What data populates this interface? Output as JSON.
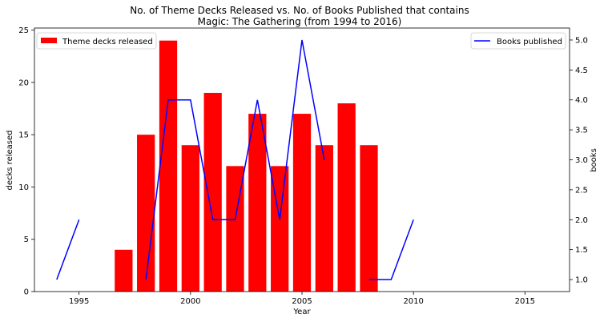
{
  "chart_data": {
    "title_line1": "No. of Theme Decks Released vs. No. of Books Published that contains",
    "title_line2": "Magic: The Gathering (from 1994 to 2016)",
    "xlabel": "Year",
    "ylabel_left": "decks released",
    "ylabel_right": "books",
    "xlim": [
      1993,
      2017
    ],
    "ylim_left": [
      0,
      25.2
    ],
    "ylim_right": [
      0.8,
      5.2
    ],
    "xticks": [
      1995,
      2000,
      2005,
      2010,
      2015
    ],
    "yticks_left": [
      0,
      5,
      10,
      15,
      20,
      25
    ],
    "yticks_right": [
      1.0,
      1.5,
      2.0,
      2.5,
      3.0,
      3.5,
      4.0,
      4.5,
      5.0
    ],
    "yticks_right_labels": [
      "1.0",
      "1.5",
      "2.0",
      "2.5",
      "3.0",
      "3.5",
      "4.0",
      "4.5",
      "5.0"
    ],
    "bars": {
      "type": "bar",
      "name": "Theme decks released",
      "color": "#ff0000",
      "x": [
        1997,
        1998,
        1999,
        2000,
        2001,
        2002,
        2003,
        2004,
        2005,
        2006,
        2007,
        2008
      ],
      "values": [
        4,
        15,
        24,
        14,
        19,
        12,
        17,
        12,
        17,
        14,
        18,
        14
      ]
    },
    "lines": {
      "type": "line",
      "name": "Books published",
      "color": "#0000ff",
      "segments": [
        [
          [
            1994,
            1
          ],
          [
            1995,
            2
          ]
        ],
        [
          [
            1998,
            1
          ],
          [
            1999,
            4
          ],
          [
            2000,
            4
          ],
          [
            2001,
            2
          ],
          [
            2002,
            2
          ],
          [
            2003,
            4
          ],
          [
            2004,
            2
          ],
          [
            2005,
            5
          ],
          [
            2006,
            3
          ]
        ],
        [
          [
            2008,
            1
          ],
          [
            2009,
            1
          ],
          [
            2010,
            2
          ]
        ]
      ]
    },
    "legend_left": "top-left",
    "legend_right": "top-right",
    "grid": false
  }
}
